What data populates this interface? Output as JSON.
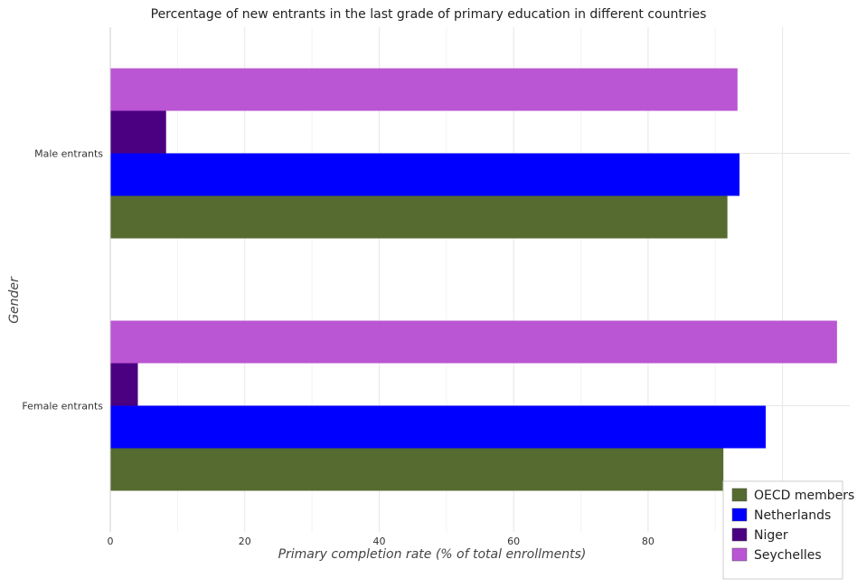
{
  "chart_data": {
    "type": "bar",
    "orientation": "horizontal",
    "title": "Percentage of new entrants in the last grade of primary education in different countries",
    "xlabel": "Primary completion rate (% of total enrollments)",
    "ylabel": "Gender",
    "categories": [
      "Female entrants",
      "Male entrants"
    ],
    "xlim": [
      0,
      110
    ],
    "xticks": [
      0,
      20,
      40,
      60,
      80,
      100
    ],
    "grid": true,
    "legend_position": "bottom-right",
    "series": [
      {
        "name": "OECD members",
        "color": "#556b2f",
        "values": [
          91.2,
          91.8
        ]
      },
      {
        "name": "Netherlands",
        "color": "#0000ff",
        "values": [
          97.5,
          93.6
        ]
      },
      {
        "name": "Niger",
        "color": "#4b0082",
        "values": [
          4.1,
          8.3
        ]
      },
      {
        "name": "Seychelles",
        "color": "#ba55d3",
        "values": [
          108.1,
          93.3
        ]
      }
    ]
  }
}
